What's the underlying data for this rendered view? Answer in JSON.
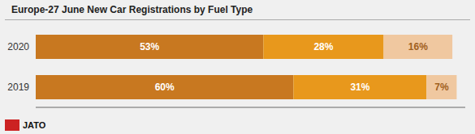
{
  "chart_data": {
    "type": "bar",
    "title": "Europe-27 June New Car Registrations by Fuel Type",
    "orientation": "horizontal",
    "stacked": true,
    "data_labels": true,
    "grid": false,
    "tick_labels": "y",
    "categories": [
      "2020",
      "2019"
    ],
    "series": [
      {
        "color": "#C87820",
        "values": [
          53,
          60
        ],
        "value_labels": [
          "53%",
          "60%"
        ]
      },
      {
        "color": "#E8981C",
        "values": [
          28,
          31
        ],
        "value_labels": [
          "28%",
          "31%"
        ]
      },
      {
        "color": "#F0C8A0",
        "values": [
          16,
          7
        ],
        "value_labels": [
          "16%",
          "7%"
        ]
      }
    ],
    "xlim": [
      0,
      100
    ],
    "annotations": [
      "JATO"
    ]
  }
}
